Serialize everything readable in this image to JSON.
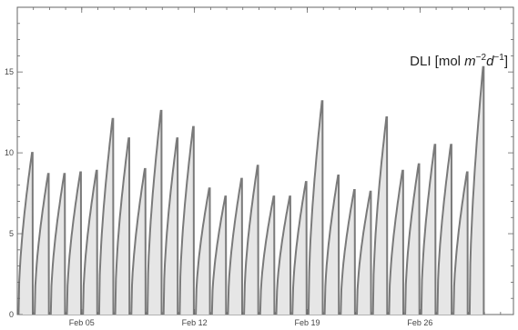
{
  "chart_data": {
    "type": "area",
    "series_label": "DLI [mol m⁻²d⁻¹]",
    "series_label_parts": {
      "prefix": "DLI [mol ",
      "m": "m",
      "m_exp": "−2",
      "d": "d",
      "d_exp": "−1",
      "suffix": "]"
    },
    "x_start": "2025-02-01",
    "x_ticks": [
      {
        "date": "2025-02-05",
        "label": "Feb 05"
      },
      {
        "date": "2025-02-12",
        "label": "Feb 12"
      },
      {
        "date": "2025-02-19",
        "label": "Feb 19"
      },
      {
        "date": "2025-02-26",
        "label": "Feb 26"
      }
    ],
    "y_ticks": [
      0,
      5,
      10,
      15
    ],
    "ylim": [
      0,
      19
    ],
    "xlim_days": [
      0,
      30.8
    ],
    "daily_dli": [
      10.0,
      8.7,
      8.7,
      8.8,
      8.9,
      12.1,
      10.9,
      9.0,
      12.6,
      10.9,
      11.6,
      7.8,
      7.3,
      8.4,
      9.2,
      7.3,
      7.3,
      8.2,
      13.2,
      8.6,
      7.7,
      7.6,
      12.2,
      8.9,
      9.3,
      10.5,
      10.5,
      8.8,
      15.3
    ],
    "grid": false,
    "fill_color": "#e6e6e6",
    "line_color": "#7a7a7a"
  }
}
